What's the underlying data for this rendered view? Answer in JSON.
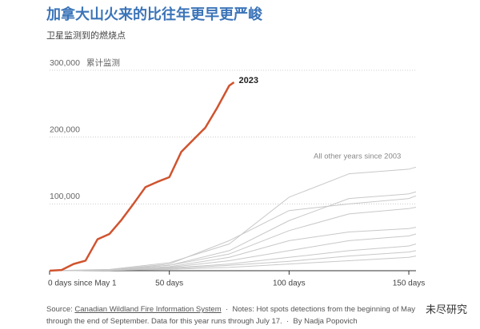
{
  "chart_data": {
    "type": "line",
    "title": "加拿大山火来的比往年更早更严峻",
    "subtitle": "卫星监测到的燃烧点",
    "ylabel": "累计监测",
    "annotation": "All other years since 2003",
    "xlim": [
      0,
      153
    ],
    "ylim": [
      0,
      300000
    ],
    "xticks": [
      {
        "value": 0,
        "label": "0 days since May 1"
      },
      {
        "value": 50,
        "label": "50 days"
      },
      {
        "value": 100,
        "label": "100 days"
      },
      {
        "value": 150,
        "label": "150 days"
      }
    ],
    "yticks": [
      {
        "value": 100000,
        "label": "100,000"
      },
      {
        "value": 200000,
        "label": "200,000"
      },
      {
        "value": 300000,
        "label": "300,000"
      }
    ],
    "grid": true,
    "series": [
      {
        "name": "2023",
        "color": "#d0532e",
        "x": [
          0,
          5,
          10,
          15,
          20,
          25,
          30,
          35,
          40,
          45,
          50,
          55,
          60,
          65,
          70,
          75,
          77
        ],
        "values": [
          0,
          1000,
          10000,
          15000,
          47000,
          55000,
          76000,
          100000,
          125000,
          133000,
          140000,
          178000,
          196000,
          214000,
          244000,
          277000,
          282000
        ]
      },
      {
        "color": "#c8c8c8",
        "x": [
          0,
          25,
          50,
          75,
          100,
          125,
          150,
          153
        ],
        "values": [
          0,
          2000,
          12000,
          40000,
          110000,
          145000,
          152000,
          155000
        ]
      },
      {
        "color": "#c8c8c8",
        "x": [
          0,
          25,
          50,
          75,
          100,
          125,
          150,
          153
        ],
        "values": [
          0,
          1000,
          8000,
          30000,
          75000,
          108000,
          115000,
          118000
        ]
      },
      {
        "color": "#c8c8c8",
        "x": [
          0,
          25,
          50,
          75,
          100,
          125,
          150,
          153
        ],
        "values": [
          0,
          1000,
          10000,
          45000,
          90000,
          100000,
          108000,
          112000
        ]
      },
      {
        "color": "#c8c8c8",
        "x": [
          0,
          25,
          50,
          75,
          100,
          125,
          150,
          153
        ],
        "values": [
          0,
          1000,
          8000,
          25000,
          60000,
          85000,
          93000,
          95000
        ]
      },
      {
        "color": "#c8c8c8",
        "x": [
          0,
          25,
          50,
          75,
          100,
          125,
          150,
          153
        ],
        "values": [
          0,
          1000,
          6000,
          20000,
          45000,
          58000,
          63000,
          65000
        ]
      },
      {
        "color": "#c8c8c8",
        "x": [
          0,
          25,
          50,
          75,
          100,
          125,
          150,
          153
        ],
        "values": [
          0,
          1000,
          5000,
          15000,
          30000,
          45000,
          52000,
          55000
        ]
      },
      {
        "color": "#c8c8c8",
        "x": [
          0,
          25,
          50,
          75,
          100,
          125,
          150,
          153
        ],
        "values": [
          0,
          1000,
          4000,
          10000,
          20000,
          30000,
          37000,
          40000
        ]
      },
      {
        "color": "#c8c8c8",
        "x": [
          0,
          25,
          50,
          75,
          100,
          125,
          150,
          153
        ],
        "values": [
          0,
          500,
          3000,
          8000,
          14000,
          22000,
          28000,
          30000
        ]
      },
      {
        "color": "#c8c8c8",
        "x": [
          0,
          25,
          50,
          75,
          100,
          125,
          150,
          153
        ],
        "values": [
          0,
          500,
          2000,
          5000,
          10000,
          15000,
          20000,
          22000
        ]
      }
    ]
  },
  "footer": {
    "source_label": "Source:",
    "source_link": "Canadian Wildland Fire Information System",
    "separator": "·",
    "notes": "Notes: Hot spots detections from the beginning of May through the end of September. Data for this year runs through July 17.",
    "byline": "By Nadja Popovich",
    "watermark": "未尽研究"
  }
}
